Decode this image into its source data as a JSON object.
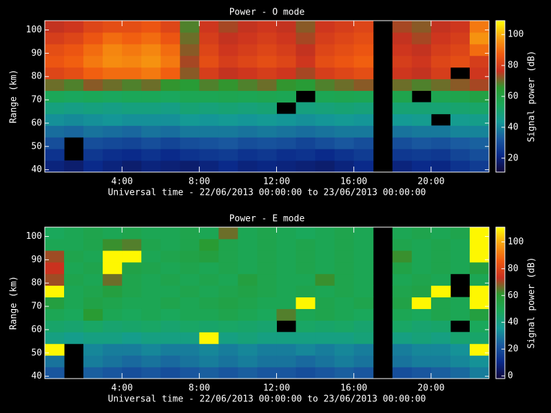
{
  "chart_data": [
    {
      "type": "heatmap",
      "title": "Power - O mode",
      "xlabel": "Universal time - 22/06/2013 00:00:00 to 23/06/2013 00:00:00",
      "ylabel": "Range (km)",
      "colorbar_label": "Signal power (dB)",
      "x": [
        0.5,
        1.5,
        2.5,
        3.5,
        4.5,
        5.5,
        6.5,
        7.5,
        8.5,
        9.5,
        10.5,
        11.5,
        12.5,
        13.5,
        14.5,
        15.5,
        16.5,
        17.5,
        18.5,
        19.5,
        20.5,
        21.5,
        22.5
      ],
      "y": [
        41.5,
        46.5,
        51.5,
        56.5,
        61.5,
        66.5,
        71.5,
        76.5,
        81.5,
        86.5,
        91.5,
        96.5,
        101.5
      ],
      "xlim": [
        0,
        23
      ],
      "ylim": [
        39,
        104
      ],
      "zlim": [
        11,
        109
      ],
      "xticks": [
        {
          "value": 4,
          "label": "4:00"
        },
        {
          "value": 8,
          "label": "8:00"
        },
        {
          "value": 12,
          "label": "12:00"
        },
        {
          "value": 16,
          "label": "16:00"
        },
        {
          "value": 20,
          "label": "20:00"
        }
      ],
      "yticks": [
        40,
        50,
        60,
        70,
        80,
        90,
        100
      ],
      "zticks": [
        20,
        40,
        60,
        80,
        100
      ],
      "colormap": [
        "#10083a",
        "#0a2a8a",
        "#1a5aa0",
        "#149a96",
        "#1aa85a",
        "#2a9a30",
        "#c83020",
        "#f05a10",
        "#f8a010",
        "#ffff00"
      ],
      "values": [
        [
          20,
          18,
          22,
          20,
          18,
          20,
          19,
          18,
          20,
          22,
          20,
          21,
          20,
          19,
          18,
          20,
          22,
          null,
          20,
          22,
          21,
          24,
          26
        ],
        [
          24,
          null,
          25,
          23,
          22,
          24,
          22,
          24,
          25,
          26,
          24,
          25,
          23,
          24,
          22,
          24,
          26,
          null,
          25,
          26,
          25,
          28,
          30
        ],
        [
          30,
          null,
          30,
          29,
          28,
          30,
          28,
          30,
          31,
          32,
          30,
          31,
          30,
          28,
          30,
          32,
          30,
          null,
          30,
          32,
          31,
          33,
          34
        ],
        [
          36,
          35,
          37,
          36,
          35,
          37,
          36,
          38,
          38,
          38,
          37,
          38,
          37,
          36,
          37,
          38,
          38,
          null,
          37,
          38,
          38,
          40,
          40
        ],
        [
          42,
          41,
          42,
          43,
          42,
          42,
          42,
          44,
          43,
          44,
          43,
          44,
          43,
          42,
          43,
          44,
          43,
          null,
          44,
          45,
          null,
          45,
          46
        ],
        [
          48,
          47,
          48,
          47,
          48,
          48,
          47,
          50,
          49,
          50,
          49,
          50,
          null,
          48,
          49,
          50,
          49,
          null,
          50,
          50,
          50,
          51,
          52
        ],
        [
          55,
          54,
          55,
          54,
          55,
          55,
          54,
          56,
          56,
          57,
          56,
          57,
          56,
          null,
          56,
          57,
          56,
          null,
          58,
          null,
          57,
          58,
          60
        ],
        [
          70,
          68,
          72,
          70,
          68,
          70,
          66,
          64,
          68,
          66,
          68,
          70,
          66,
          64,
          68,
          70,
          72,
          null,
          70,
          68,
          70,
          72,
          74
        ],
        [
          82,
          84,
          88,
          90,
          90,
          92,
          88,
          72,
          80,
          76,
          78,
          80,
          78,
          74,
          80,
          82,
          84,
          null,
          78,
          76,
          80,
          null,
          78
        ],
        [
          86,
          88,
          92,
          95,
          94,
          96,
          92,
          74,
          84,
          80,
          82,
          84,
          82,
          78,
          84,
          86,
          88,
          null,
          80,
          78,
          82,
          84,
          80
        ],
        [
          84,
          86,
          90,
          94,
          92,
          94,
          90,
          72,
          82,
          78,
          80,
          82,
          80,
          76,
          82,
          84,
          86,
          null,
          78,
          76,
          80,
          82,
          90
        ],
        [
          80,
          82,
          86,
          90,
          88,
          90,
          86,
          70,
          80,
          76,
          78,
          80,
          78,
          74,
          80,
          82,
          84,
          null,
          76,
          74,
          78,
          80,
          96
        ],
        [
          76,
          78,
          82,
          84,
          84,
          86,
          82,
          68,
          78,
          74,
          76,
          78,
          76,
          72,
          78,
          80,
          82,
          null,
          74,
          72,
          76,
          78,
          92
        ]
      ]
    },
    {
      "type": "heatmap",
      "title": "Power - E mode",
      "xlabel": "Universal time - 22/06/2013 00:00:00 to 23/06/2013 00:00:00",
      "ylabel": "Range (km)",
      "colorbar_label": "Signal power (dB)",
      "x": [
        0.5,
        1.5,
        2.5,
        3.5,
        4.5,
        5.5,
        6.5,
        7.5,
        8.5,
        9.5,
        10.5,
        11.5,
        12.5,
        13.5,
        14.5,
        15.5,
        16.5,
        17.5,
        18.5,
        19.5,
        20.5,
        21.5,
        22.5
      ],
      "y": [
        41.5,
        46.5,
        51.5,
        56.5,
        61.5,
        66.5,
        71.5,
        76.5,
        81.5,
        86.5,
        91.5,
        96.5,
        101.5
      ],
      "xlim": [
        0,
        23
      ],
      "ylim": [
        39,
        104
      ],
      "zlim": [
        -2,
        111
      ],
      "xticks": [
        {
          "value": 4,
          "label": "4:00"
        },
        {
          "value": 8,
          "label": "8:00"
        },
        {
          "value": 12,
          "label": "12:00"
        },
        {
          "value": 16,
          "label": "16:00"
        },
        {
          "value": 20,
          "label": "20:00"
        }
      ],
      "yticks": [
        40,
        50,
        60,
        70,
        80,
        90,
        100
      ],
      "zticks": [
        0,
        20,
        40,
        60,
        80,
        100
      ],
      "colormap": [
        "#10083a",
        "#0a2a8a",
        "#1a5aa0",
        "#149a96",
        "#1aa85a",
        "#2a9a30",
        "#c83020",
        "#f05a10",
        "#f8a010",
        "#ffff00"
      ],
      "values": [
        [
          22,
          null,
          24,
          22,
          20,
          22,
          20,
          22,
          24,
          22,
          24,
          22,
          22,
          20,
          22,
          24,
          22,
          null,
          20,
          22,
          24,
          26,
          30
        ],
        [
          28,
          null,
          30,
          28,
          26,
          28,
          26,
          28,
          30,
          28,
          30,
          28,
          28,
          26,
          28,
          30,
          28,
          null,
          28,
          30,
          30,
          32,
          34
        ],
        [
          110,
          null,
          32,
          30,
          30,
          32,
          30,
          30,
          32,
          30,
          32,
          30,
          30,
          32,
          30,
          32,
          30,
          null,
          30,
          32,
          32,
          34,
          110
        ],
        [
          40,
          38,
          40,
          40,
          38,
          40,
          40,
          40,
          110,
          40,
          42,
          40,
          40,
          40,
          40,
          40,
          42,
          null,
          40,
          42,
          40,
          44,
          45
        ],
        [
          45,
          44,
          46,
          44,
          45,
          46,
          44,
          46,
          45,
          46,
          45,
          44,
          null,
          46,
          45,
          46,
          44,
          null,
          46,
          44,
          45,
          null,
          48
        ],
        [
          50,
          48,
          60,
          50,
          48,
          50,
          48,
          50,
          50,
          52,
          50,
          48,
          64,
          50,
          52,
          50,
          48,
          null,
          50,
          48,
          52,
          50,
          56
        ],
        [
          56,
          50,
          54,
          52,
          50,
          50,
          52,
          50,
          52,
          54,
          52,
          50,
          50,
          110,
          52,
          50,
          52,
          null,
          54,
          110,
          52,
          50,
          110
        ],
        [
          110,
          50,
          52,
          56,
          52,
          50,
          50,
          52,
          50,
          52,
          54,
          52,
          50,
          52,
          50,
          52,
          50,
          null,
          52,
          54,
          110,
          null,
          110
        ],
        [
          70,
          52,
          50,
          66,
          52,
          50,
          52,
          50,
          52,
          50,
          56,
          52,
          50,
          50,
          62,
          52,
          50,
          null,
          50,
          52,
          50,
          null,
          50
        ],
        [
          74,
          50,
          52,
          110,
          54,
          52,
          50,
          52,
          50,
          52,
          50,
          52,
          50,
          52,
          50,
          52,
          50,
          null,
          54,
          50,
          52,
          50,
          56
        ],
        [
          70,
          52,
          50,
          110,
          110,
          50,
          52,
          54,
          56,
          52,
          50,
          52,
          50,
          52,
          50,
          52,
          50,
          null,
          62,
          50,
          52,
          50,
          110
        ],
        [
          50,
          50,
          52,
          62,
          64,
          52,
          50,
          52,
          60,
          52,
          50,
          52,
          50,
          52,
          50,
          52,
          50,
          null,
          52,
          50,
          52,
          50,
          110
        ],
        [
          48,
          50,
          52,
          50,
          52,
          50,
          50,
          52,
          50,
          66,
          50,
          52,
          50,
          48,
          50,
          52,
          50,
          null,
          50,
          52,
          50,
          52,
          110
        ]
      ]
    }
  ]
}
